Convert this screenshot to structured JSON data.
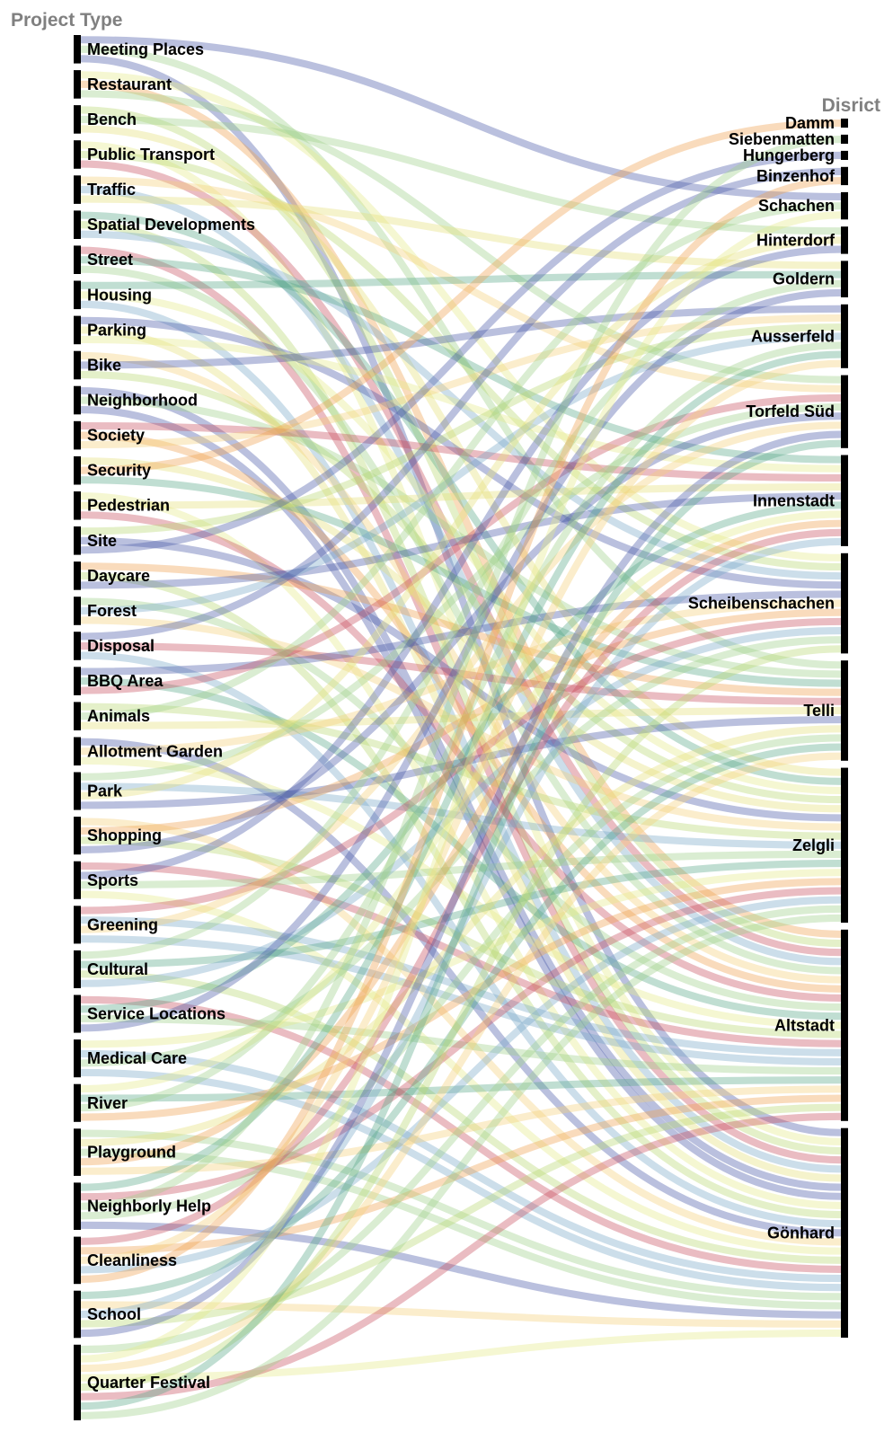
{
  "chart_data": {
    "type": "sankey",
    "left_title": "Project Type",
    "right_title": "Disrict",
    "palette": [
      "#f4d07a",
      "#9ed08a",
      "#c9505e",
      "#e6ea8a",
      "#4a5aa8",
      "#7aa8c8",
      "#f0a050",
      "#5aa88a",
      "#e6e07a",
      "#b8d870"
    ],
    "left_nodes": [
      {
        "name": "Meeting Places",
        "value": 3
      },
      {
        "name": "Restaurant",
        "value": 3
      },
      {
        "name": "Bench",
        "value": 3
      },
      {
        "name": "Public Transport",
        "value": 3
      },
      {
        "name": "Traffic",
        "value": 3
      },
      {
        "name": "Spatial Developments",
        "value": 3
      },
      {
        "name": "Street",
        "value": 3
      },
      {
        "name": "Housing",
        "value": 3
      },
      {
        "name": "Parking",
        "value": 3
      },
      {
        "name": "Bike",
        "value": 3
      },
      {
        "name": "Neighborhood",
        "value": 3
      },
      {
        "name": "Society",
        "value": 3
      },
      {
        "name": "Security",
        "value": 3
      },
      {
        "name": "Pedestrian",
        "value": 3
      },
      {
        "name": "Site",
        "value": 3
      },
      {
        "name": "Daycare",
        "value": 3
      },
      {
        "name": "Forest",
        "value": 3
      },
      {
        "name": "Disposal",
        "value": 3
      },
      {
        "name": "BBQ Area",
        "value": 3
      },
      {
        "name": "Animals",
        "value": 3
      },
      {
        "name": "Allotment Garden",
        "value": 3
      },
      {
        "name": "Park",
        "value": 4
      },
      {
        "name": "Shopping",
        "value": 4
      },
      {
        "name": "Sports",
        "value": 4
      },
      {
        "name": "Greening",
        "value": 4
      },
      {
        "name": "Cultural",
        "value": 4
      },
      {
        "name": "Service Locations",
        "value": 4
      },
      {
        "name": "Medical Care",
        "value": 4
      },
      {
        "name": "River",
        "value": 4
      },
      {
        "name": "Playground",
        "value": 5
      },
      {
        "name": "Neighborly Help",
        "value": 5
      },
      {
        "name": "Cleanliness",
        "value": 5
      },
      {
        "name": "School",
        "value": 5
      },
      {
        "name": "Quarter Festival",
        "value": 8
      }
    ],
    "right_nodes": [
      {
        "name": "Damm",
        "value": 1
      },
      {
        "name": "Siebenmatten",
        "value": 1
      },
      {
        "name": "Hungerberg",
        "value": 1
      },
      {
        "name": "Binzenhof",
        "value": 2
      },
      {
        "name": "Schachen",
        "value": 3
      },
      {
        "name": "Hinterdorf",
        "value": 3
      },
      {
        "name": "Goldern",
        "value": 4
      },
      {
        "name": "Ausserfeld",
        "value": 7
      },
      {
        "name": "Torfeld Süd",
        "value": 8
      },
      {
        "name": "Innenstadt",
        "value": 10
      },
      {
        "name": "Scheibenschachen",
        "value": 11
      },
      {
        "name": "Telli",
        "value": 11
      },
      {
        "name": "Zelgli",
        "value": 17
      },
      {
        "name": "Altstadt",
        "value": 21
      },
      {
        "name": "Gönhard",
        "value": 23
      }
    ]
  }
}
